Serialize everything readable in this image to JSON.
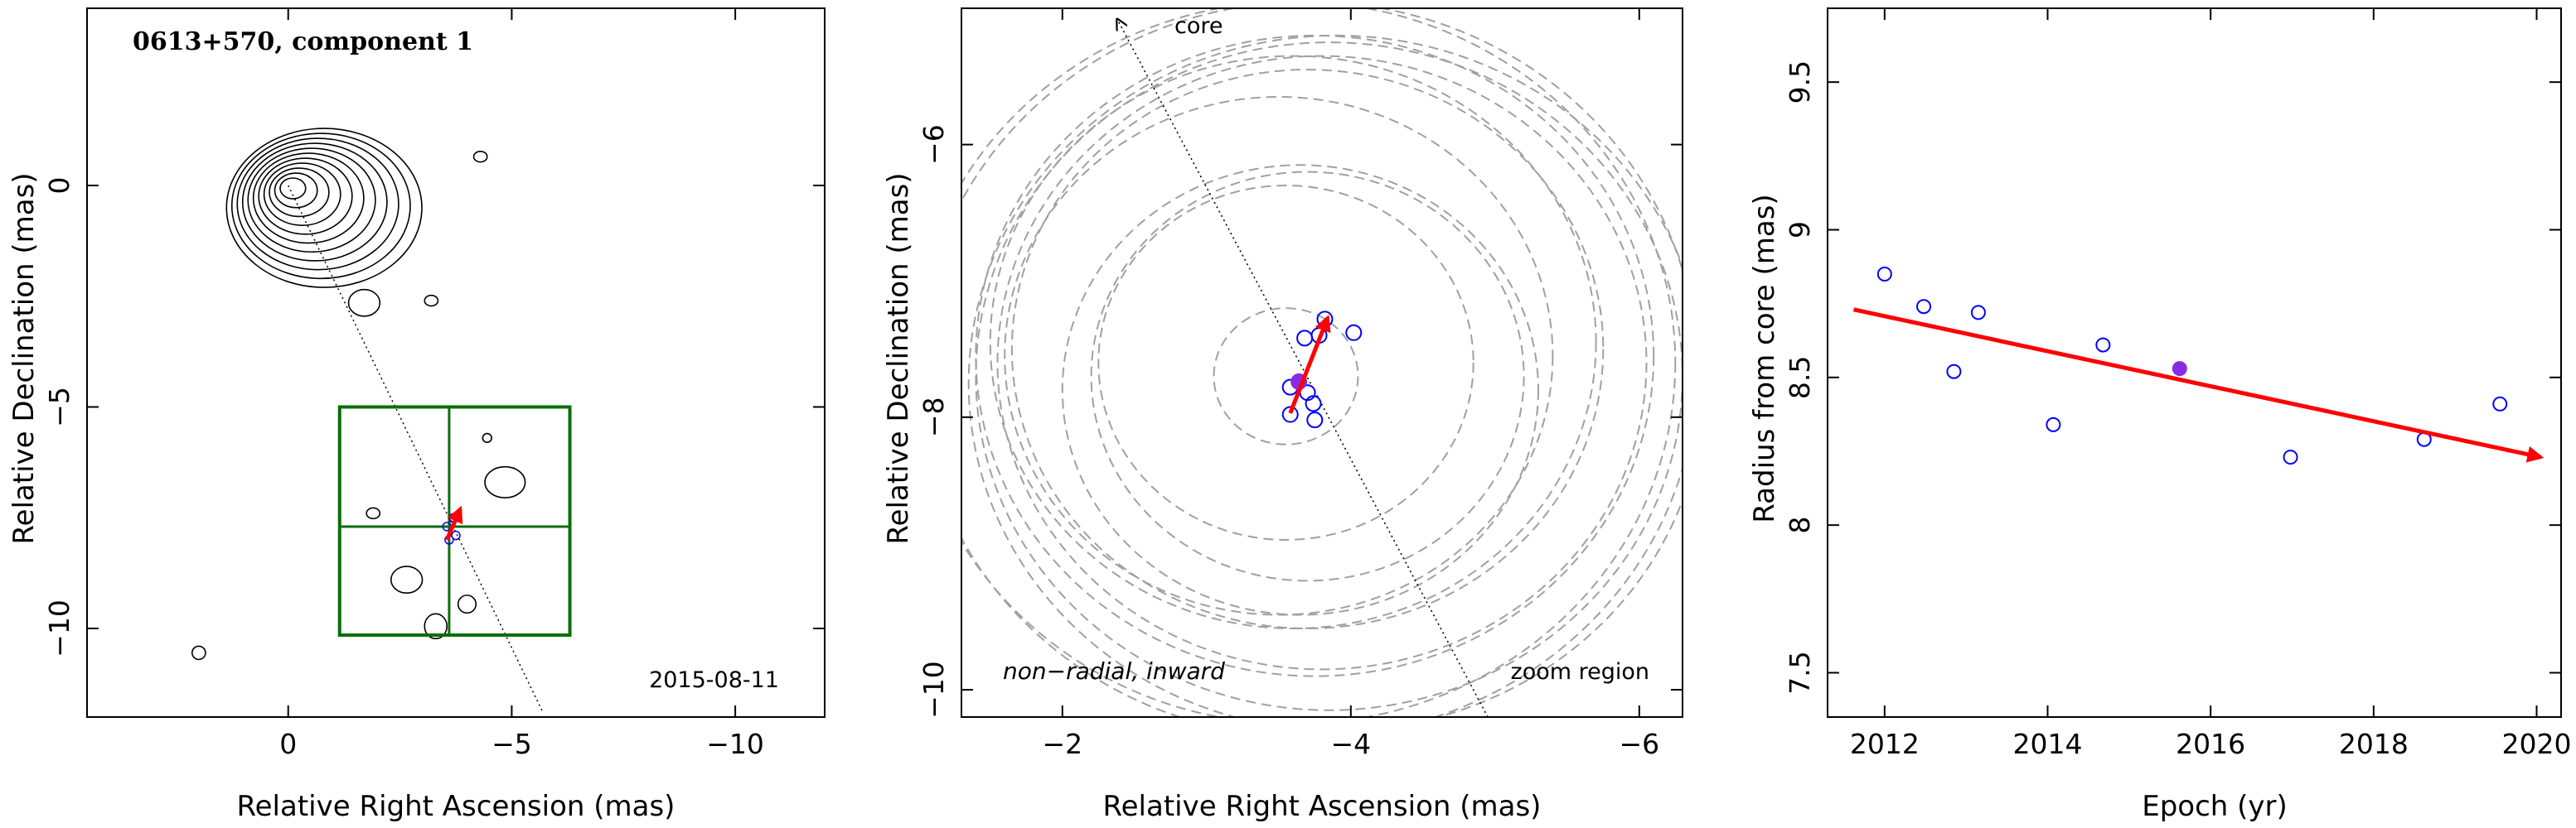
{
  "chart_data": [
    {
      "type": "scatter",
      "title": "0613+570, component 1",
      "xlabel": "Relative Right Ascension (mas)",
      "ylabel": "Relative Declination (mas)",
      "xlim": [
        4.5,
        -12.0
      ],
      "ylim": [
        -12.0,
        4.0
      ],
      "xticks": [
        0,
        -5,
        -10
      ],
      "yticks": [
        0,
        -5,
        -10
      ],
      "date_label": "2015-08-11",
      "core_contours": {
        "center": [
          0.0,
          0.0
        ],
        "radii": [
          0.3,
          0.5,
          0.7,
          0.9,
          1.1,
          1.3,
          1.5,
          1.7,
          1.9,
          2.1,
          2.3
        ]
      },
      "small_contours": [
        {
          "center": [
            -4.3,
            0.65
          ],
          "rx": 0.15,
          "ry": 0.12
        },
        {
          "center": [
            -1.7,
            -2.65
          ],
          "rx": 0.35,
          "ry": 0.3
        },
        {
          "center": [
            -3.2,
            -2.6
          ],
          "rx": 0.15,
          "ry": 0.12
        },
        {
          "center": [
            -4.45,
            -5.7
          ],
          "rx": 0.1,
          "ry": 0.1
        },
        {
          "center": [
            -1.9,
            -7.4
          ],
          "rx": 0.15,
          "ry": 0.12
        },
        {
          "center": [
            -2.65,
            -8.9
          ],
          "rx": 0.35,
          "ry": 0.3
        },
        {
          "center": [
            -4.0,
            -9.45
          ],
          "rx": 0.2,
          "ry": 0.2
        },
        {
          "center": [
            -3.3,
            -9.95
          ],
          "rx": 0.25,
          "ry": 0.28
        },
        {
          "center": [
            2.0,
            -10.55
          ],
          "rx": 0.15,
          "ry": 0.15
        },
        {
          "center": [
            -4.85,
            -6.7
          ],
          "rx": 0.45,
          "ry": 0.35
        }
      ],
      "jet_line": {
        "x": [
          0.0,
          -5.7
        ],
        "y": [
          0.0,
          -11.9
        ]
      },
      "zoom_box": {
        "x": [
          -1.15,
          -6.3
        ],
        "y": [
          -5.0,
          -10.15
        ],
        "cross": [
          -3.6,
          -7.7
        ]
      },
      "points": {
        "x": [
          -3.55,
          -3.7,
          -3.75,
          -3.6
        ],
        "y": [
          -7.7,
          -7.5,
          -7.9,
          -8.0
        ]
      },
      "arrow": {
        "x": [
          -3.55,
          -3.85
        ],
        "y": [
          -8.0,
          -7.3
        ]
      }
    },
    {
      "type": "scatter",
      "xlabel": "Relative Right Ascension (mas)",
      "ylabel": "Relative Declination (mas)",
      "xlim": [
        -1.3,
        -6.3
      ],
      "ylim": [
        -10.2,
        -5.0
      ],
      "xticks": [
        -2,
        -4,
        -6
      ],
      "yticks": [
        -6,
        -8,
        -10
      ],
      "labels": {
        "core": "core",
        "zoom": "zoom region",
        "motion": "non−radial, inward"
      },
      "core_pointer": {
        "x": [
          -4.95,
          -2.38
        ],
        "y": [
          -10.2,
          -5.08
        ]
      },
      "points": {
        "x": [
          -3.82,
          -3.68,
          -3.78,
          -4.02,
          -3.58,
          -3.7,
          -3.58,
          -3.74,
          -3.75
        ],
        "y": [
          -7.28,
          -7.42,
          -7.4,
          -7.38,
          -7.78,
          -7.82,
          -7.98,
          -7.9,
          -8.02
        ]
      },
      "highlight_point": {
        "x": -3.64,
        "y": -7.74
      },
      "arrow": {
        "x": [
          -3.58,
          -3.84
        ],
        "y": [
          -7.97,
          -7.27
        ]
      },
      "error_circles": [
        {
          "x": -3.55,
          "y": -7.6,
          "r": 1.3
        },
        {
          "x": -3.65,
          "y": -7.8,
          "r": 1.65
        },
        {
          "x": -3.7,
          "y": -7.7,
          "r": 1.5
        },
        {
          "x": -3.5,
          "y": -7.55,
          "r": 1.9
        },
        {
          "x": -3.6,
          "y": -7.45,
          "r": 2.1
        },
        {
          "x": -3.7,
          "y": -7.5,
          "r": 2.05
        },
        {
          "x": -3.8,
          "y": -7.6,
          "r": 2.25
        },
        {
          "x": -3.75,
          "y": -7.55,
          "r": 2.35
        },
        {
          "x": -3.85,
          "y": -7.7,
          "r": 2.45
        },
        {
          "x": -3.9,
          "y": -7.75,
          "r": 2.55
        },
        {
          "x": -3.6,
          "y": -7.6,
          "r": 2.65
        },
        {
          "x": -3.7,
          "y": -7.65,
          "r": 2.7
        },
        {
          "x": -3.55,
          "y": -7.7,
          "r": 0.5
        }
      ]
    },
    {
      "type": "scatter",
      "xlabel": "Epoch (yr)",
      "ylabel": "Radius from core (mas)",
      "xlim": [
        2011.3,
        2020.3
      ],
      "ylim": [
        7.35,
        9.75
      ],
      "xticks": [
        2012,
        2014,
        2016,
        2018,
        2020
      ],
      "yticks": [
        7.5,
        8,
        8.5,
        9,
        9.5
      ],
      "x": [
        2012.0,
        2012.48,
        2012.85,
        2013.15,
        2014.07,
        2014.68,
        2016.98,
        2018.62,
        2019.55
      ],
      "y": [
        8.85,
        8.74,
        8.52,
        8.72,
        8.34,
        8.61,
        8.23,
        8.29,
        8.41
      ],
      "highlight_point": {
        "x": 2015.62,
        "y": 8.53
      },
      "fit_arrow": {
        "x": [
          2011.62,
          2020.05
        ],
        "y": [
          8.73,
          8.23
        ]
      }
    }
  ],
  "colors": {
    "data_point": "#0000ff",
    "highlight": "#8a2be2",
    "arrow": "#ff0000",
    "zoom_box": "#0a6e0a",
    "error_circle": "#a0a0a0",
    "axes": "#000000"
  }
}
